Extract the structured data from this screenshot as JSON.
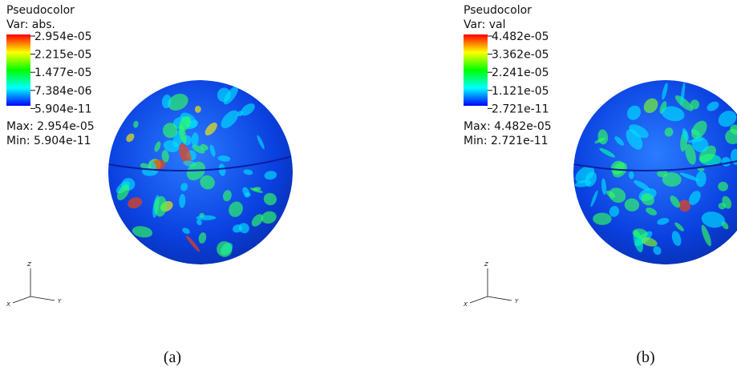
{
  "panels": [
    {
      "legend": {
        "title": "Pseudocolor",
        "variable": "Var: abs.",
        "ticks": [
          "2.954e-05",
          "2.215e-05",
          "1.477e-05",
          "7.384e-06",
          "5.904e-11"
        ],
        "max": "Max:  2.954e-05",
        "min": "Min:  5.904e-11"
      },
      "axes": {
        "z": "Z",
        "y": "Y",
        "x": "X"
      },
      "caption": "(a)"
    },
    {
      "legend": {
        "title": "Pseudocolor",
        "variable": "Var: val",
        "ticks": [
          "4.482e-05",
          "3.362e-05",
          "2.241e-05",
          "1.121e-05",
          "2.721e-11"
        ],
        "max": "Max:  4.482e-05",
        "min": "Min:  2.721e-11"
      },
      "axes": {
        "z": "Z",
        "y": "Y",
        "x": "X"
      },
      "caption": "(b)"
    }
  ]
}
